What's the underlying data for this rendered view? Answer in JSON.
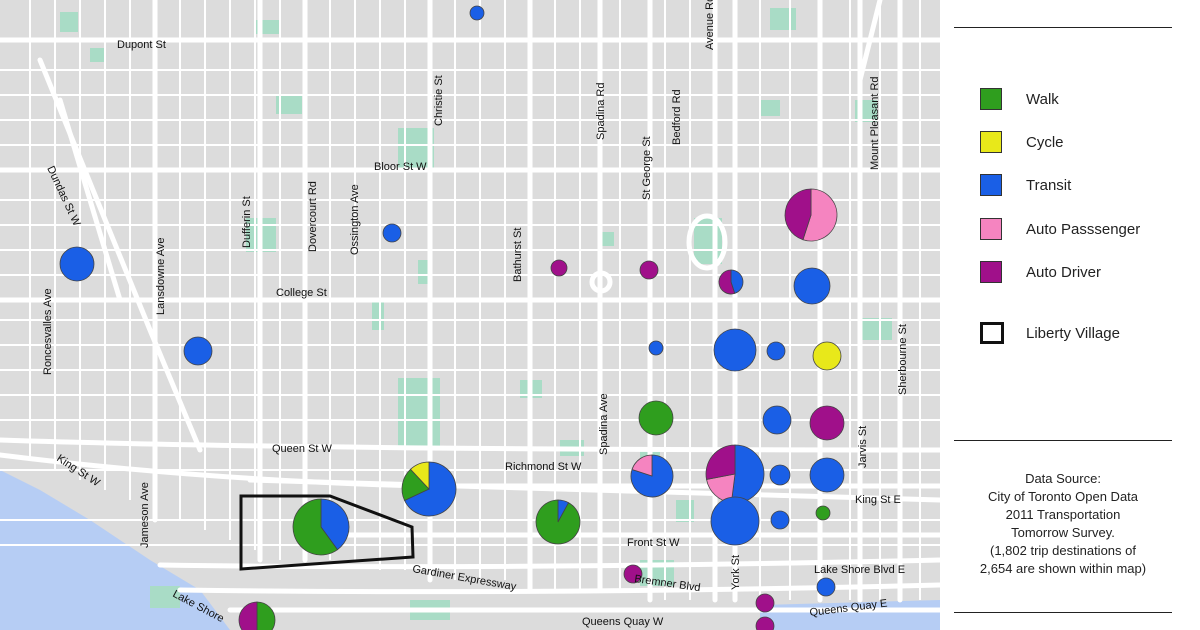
{
  "map": {
    "streets": {
      "dupont": "Dupont St",
      "christie": "Christie St",
      "avenue_rd": "Avenue Rd",
      "spadina_rd": "Spadina Rd",
      "bedford": "Bedford Rd",
      "st_george": "St George St",
      "mount_pleasant": "Mount Pleasant Rd",
      "bloor": "Bloor St W",
      "dundas": "Dundas St W",
      "dufferin": "Dufferin St",
      "dovercourt": "Dovercourt Rd",
      "ossington": "Ossington Ave",
      "lansdowne": "Lansdowne Ave",
      "bathurst": "Bathurst St",
      "college": "College St",
      "roncesvalles": "Roncesvalles Ave",
      "sherbourne": "Sherbourne St",
      "spadina_ave": "Spadina Ave",
      "jarvis": "Jarvis St",
      "queen": "Queen St W",
      "king_w": "King St W",
      "jameson": "Jameson Ave",
      "richmond": "Richmond St W",
      "king_e": "King St E",
      "york": "York St",
      "front": "Front St W",
      "gardiner": "Gardiner  Expressway",
      "bremner": "Bremner  Blvd",
      "lakeshore_e": "Lake Shore Blvd E",
      "lakeshore": "Lake Shore",
      "queens_quay_e": "Queens Quay E",
      "queens_quay_w": "Queens Quay W"
    },
    "mode_colors": {
      "walk": "#2f9e1e",
      "cycle": "#e8e81a",
      "transit": "#1a5fe6",
      "auto_passenger": "#f584c0",
      "auto_driver": "#a0108a"
    },
    "liberty_village_outline_color": "#111111",
    "destination_symbols": [
      {
        "id": "d1",
        "modes": {
          "transit": 1
        }
      },
      {
        "id": "d2",
        "modes": {
          "transit": 1
        }
      },
      {
        "id": "d3",
        "modes": {
          "transit": 1
        }
      },
      {
        "id": "d4",
        "modes": {
          "transit": 1
        }
      },
      {
        "id": "d5",
        "modes": {
          "auto_driver": 0.45,
          "auto_passenger": 0.55
        }
      },
      {
        "id": "d6",
        "modes": {
          "auto_driver": 1
        }
      },
      {
        "id": "d7",
        "modes": {
          "auto_driver": 1
        }
      },
      {
        "id": "d8",
        "modes": {
          "transit": 0.45,
          "auto_driver": 0.55
        }
      },
      {
        "id": "d9",
        "modes": {
          "transit": 1
        }
      },
      {
        "id": "d10",
        "modes": {
          "transit": 1
        }
      },
      {
        "id": "d11",
        "modes": {
          "transit": 1
        }
      },
      {
        "id": "d12",
        "modes": {
          "transit": 1
        }
      },
      {
        "id": "d13",
        "modes": {
          "cycle": 1
        }
      },
      {
        "id": "d14",
        "modes": {
          "walk": 1
        }
      },
      {
        "id": "d15",
        "modes": {
          "transit": 1
        }
      },
      {
        "id": "d16",
        "modes": {
          "auto_driver": 1
        }
      },
      {
        "id": "d17",
        "modes": {
          "transit": 0.68,
          "walk": 0.2,
          "cycle": 0.12
        }
      },
      {
        "id": "d18",
        "modes": {
          "transit": 0.8,
          "auto_passenger": 0.2
        }
      },
      {
        "id": "d19",
        "modes": {
          "transit": 0.52,
          "auto_passenger": 0.2,
          "auto_driver": 0.28
        }
      },
      {
        "id": "d20",
        "modes": {
          "transit": 1
        }
      },
      {
        "id": "d21",
        "modes": {
          "transit": 1
        }
      },
      {
        "id": "d22",
        "modes": {
          "transit": 0.4,
          "walk": 0.6
        }
      },
      {
        "id": "d23",
        "modes": {
          "transit": 0.08,
          "walk": 0.92
        }
      },
      {
        "id": "d24",
        "modes": {
          "transit": 1
        }
      },
      {
        "id": "d25",
        "modes": {
          "transit": 1
        }
      },
      {
        "id": "d26",
        "modes": {
          "walk": 1
        }
      },
      {
        "id": "d27",
        "modes": {
          "auto_driver": 1
        }
      },
      {
        "id": "d28",
        "modes": {
          "transit": 1
        }
      },
      {
        "id": "d29",
        "modes": {
          "auto_driver": 1
        }
      },
      {
        "id": "d30",
        "modes": {
          "auto_driver": 1
        }
      },
      {
        "id": "d31",
        "modes": {
          "auto_driver": 0.5,
          "walk": 0.5
        }
      }
    ]
  },
  "legend": {
    "items": [
      {
        "key": "walk",
        "label": "Walk",
        "color": "#2f9e1e"
      },
      {
        "key": "cycle",
        "label": "Cycle",
        "color": "#e8e81a"
      },
      {
        "key": "transit",
        "label": "Transit",
        "color": "#1a5fe6"
      },
      {
        "key": "auto_passenger",
        "label": "Auto  Passsenger",
        "color": "#f584c0"
      },
      {
        "key": "auto_driver",
        "label": "Auto  Driver",
        "color": "#a0108a"
      }
    ],
    "boundary_label": "Liberty Village"
  },
  "source": {
    "lines": [
      "Data Source:",
      "City of Toronto Open Data",
      "2011 Transportation",
      "Tomorrow Survey.",
      "(1,802 trip destinations of",
      "2,654 are shown within map)"
    ]
  }
}
